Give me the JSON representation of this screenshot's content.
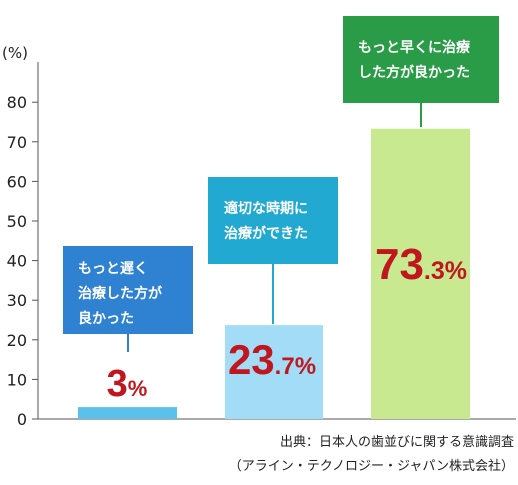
{
  "chart_data": {
    "type": "bar",
    "ylabel": "(%)",
    "ylim": [
      0,
      90
    ],
    "yticks": [
      0,
      10,
      20,
      30,
      40,
      50,
      60,
      70,
      80
    ],
    "categories": [
      [
        "もっと遅く",
        "治療した方が",
        "良かった"
      ],
      [
        "適切な時期に",
        "治療ができた"
      ],
      [
        "もっと早くに治療",
        "した方が良かった"
      ]
    ],
    "values": [
      3,
      23.7,
      73.3
    ],
    "value_labels": [
      {
        "int": "3",
        "dec": "",
        "pct": "%"
      },
      {
        "int": "23",
        "dec": ".7",
        "pct": "%"
      },
      {
        "int": "73",
        "dec": ".3",
        "pct": "%"
      }
    ],
    "colors": {
      "bars": [
        "#5bc1ea",
        "#a3dcf6",
        "#c8e990"
      ],
      "boxes": [
        "#2f82d2",
        "#22a9d2",
        "#2a9b46"
      ],
      "value_text": "#c0171e"
    },
    "source_lines": [
      "出典：日本人の歯並びに関する意識調査",
      "（アライン・テクノロジー・ジャパン株式会社）"
    ]
  }
}
